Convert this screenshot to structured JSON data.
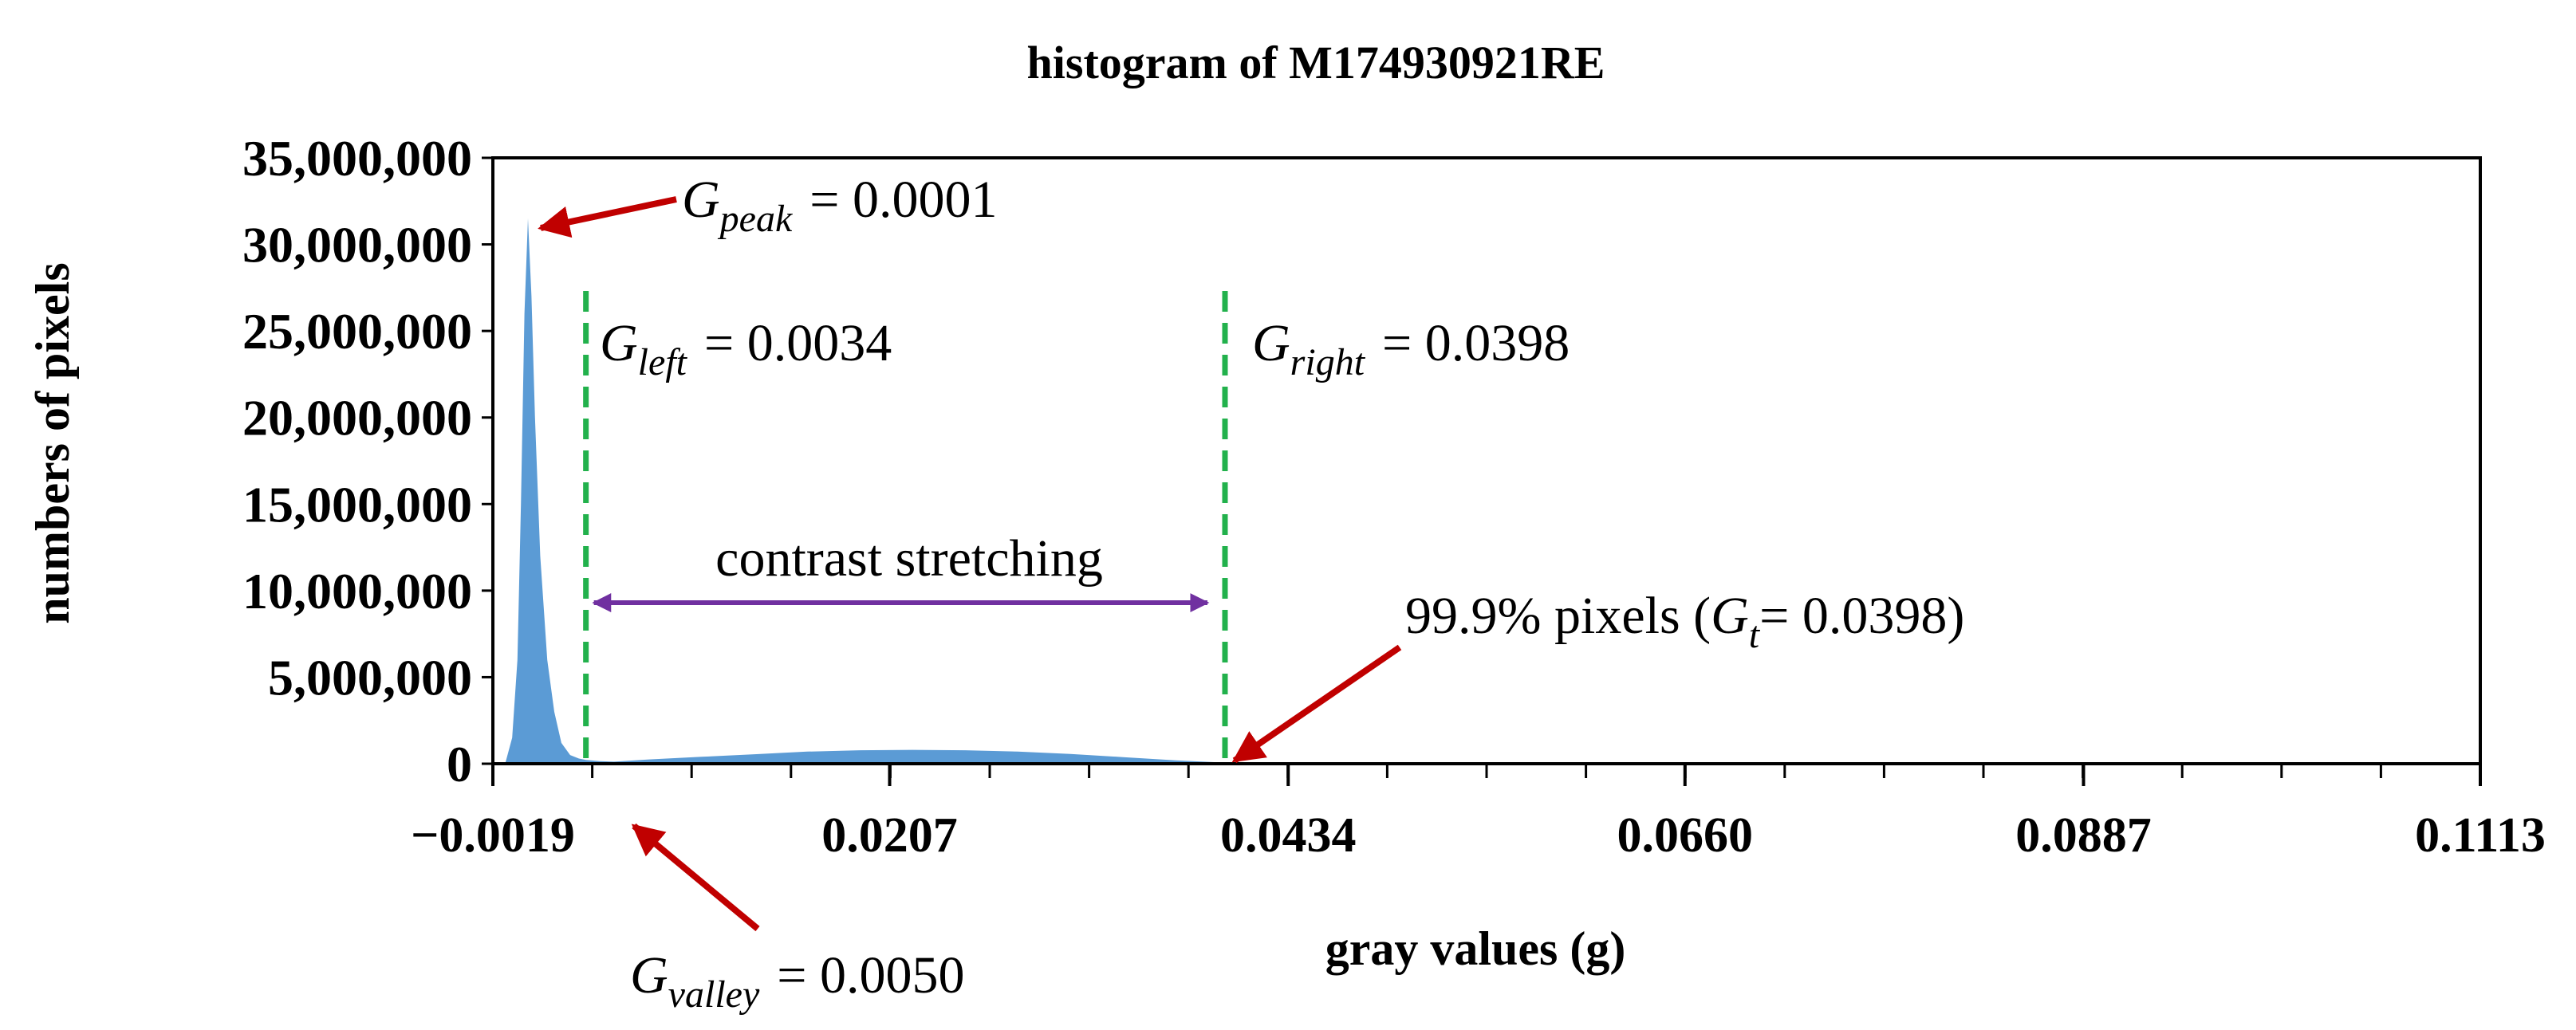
{
  "chart_data": {
    "type": "area",
    "title": "histogram of M174930921RE",
    "xlabel": "gray values (g)",
    "ylabel": "numbers of pixels",
    "xlim": [
      -0.0019,
      0.1113
    ],
    "ylim": [
      0,
      35000000
    ],
    "x_ticks": [
      -0.0019,
      0.0207,
      0.0434,
      0.066,
      0.0887,
      0.1113
    ],
    "x_tick_labels": [
      "−0.0019",
      "0.0207",
      "0.0434",
      "0.0660",
      "0.0887",
      "0.1113"
    ],
    "y_ticks": [
      0,
      5000000,
      10000000,
      15000000,
      20000000,
      25000000,
      30000000,
      35000000
    ],
    "y_tick_labels": [
      "0",
      "5,000,000",
      "10,000,000",
      "15,000,000",
      "20,000,000",
      "25,000,000",
      "30,000,000",
      "35,000,000"
    ],
    "grid": false,
    "color": "#5b9bd5",
    "series": [
      {
        "name": "histogram",
        "x": [
          -0.0012,
          -0.0008,
          -0.0005,
          -0.0003,
          -0.0001,
          0.0001,
          0.0003,
          0.0005,
          0.0008,
          0.0012,
          0.0016,
          0.002,
          0.0025,
          0.003,
          0.0034,
          0.0042,
          0.005,
          0.007,
          0.01,
          0.013,
          0.016,
          0.019,
          0.022,
          0.025,
          0.028,
          0.031,
          0.034,
          0.037,
          0.0398,
          0.042
        ],
        "y": [
          0,
          1500000,
          6000000,
          15000000,
          26000000,
          31500000,
          27000000,
          20000000,
          12000000,
          6000000,
          3000000,
          1200000,
          500000,
          300000,
          220000,
          150000,
          120000,
          250000,
          400000,
          550000,
          700000,
          780000,
          800000,
          780000,
          700000,
          560000,
          380000,
          200000,
          60000,
          0
        ]
      }
    ],
    "markers": [
      {
        "name": "G_left",
        "x": 0.0034,
        "color": "#22b14c",
        "style": "dashed"
      },
      {
        "name": "G_right",
        "x": 0.0398,
        "color": "#22b14c",
        "style": "dashed"
      }
    ],
    "annotations": {
      "g_peak": {
        "symbol": "G",
        "subscript": "peak",
        "value": "= 0.0001",
        "x": 0.0001,
        "y": 31500000
      },
      "g_left": {
        "symbol": "G",
        "subscript": "left",
        "value": "= 0.0034"
      },
      "g_right": {
        "symbol": "G",
        "subscript": "right",
        "value": "= 0.0398"
      },
      "g_valley": {
        "symbol": "G",
        "subscript": "valley",
        "value": "= 0.0050",
        "x": 0.005,
        "y": 0
      },
      "stretch": {
        "label": "contrast stretching",
        "x1": 0.0034,
        "x2": 0.0398,
        "y": 9300000,
        "color": "#7030a0"
      },
      "threshold": {
        "prefix": "99.9% pixels (",
        "symbol": "G",
        "subscript": "t",
        "value": "= 0.0398)",
        "x": 0.0398,
        "y": 0
      },
      "arrow_color": "#c00000"
    }
  }
}
